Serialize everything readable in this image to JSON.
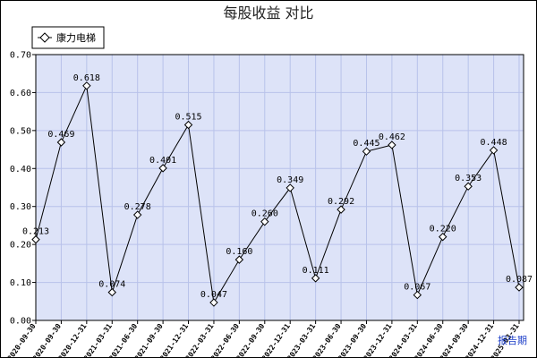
{
  "chart_data": {
    "type": "line",
    "title": "每股收益 对比",
    "legend": {
      "placement": "top-left",
      "entries": [
        "康力电梯"
      ]
    },
    "unit_label": "报告期",
    "ylim": [
      0,
      0.7
    ],
    "yticks": [
      "0.00",
      "0.10",
      "0.20",
      "0.30",
      "0.40",
      "0.50",
      "0.60",
      "0.70"
    ],
    "grid": true,
    "categories": [
      "2020-09-30",
      "2020-09-30",
      "2020-12-31",
      "2021-03-31",
      "2021-06-30",
      "2021-09-30",
      "2021-12-31",
      "2022-03-31",
      "2022-06-30",
      "2022-09-30",
      "2022-12-31",
      "2023-03-31",
      "2023-06-30",
      "2023-09-30",
      "2023-12-31",
      "2024-03-31",
      "2024-06-30",
      "2024-09-30",
      "2024-12-31",
      "2025-03-31"
    ],
    "series": [
      {
        "name": "康力电梯",
        "values": [
          0.213,
          0.469,
          0.618,
          0.074,
          0.278,
          0.401,
          0.515,
          0.047,
          0.16,
          0.26,
          0.349,
          0.111,
          0.292,
          0.445,
          0.462,
          0.067,
          0.22,
          0.353,
          0.448,
          0.087
        ],
        "labels": [
          "0.213",
          "0.469",
          "0.618",
          "0.074",
          "0.278",
          "0.401",
          "0.515",
          "0.047",
          "0.160",
          "0.260",
          "0.349",
          "0.111",
          "0.292",
          "0.445",
          "0.462",
          "0.067",
          "0.220",
          "0.353",
          "0.448",
          "0.087"
        ]
      }
    ]
  },
  "colors": {
    "plot_bg": "#dde3f8",
    "grid": "#b8c2ea",
    "line": "#000000",
    "border": "#000000"
  }
}
